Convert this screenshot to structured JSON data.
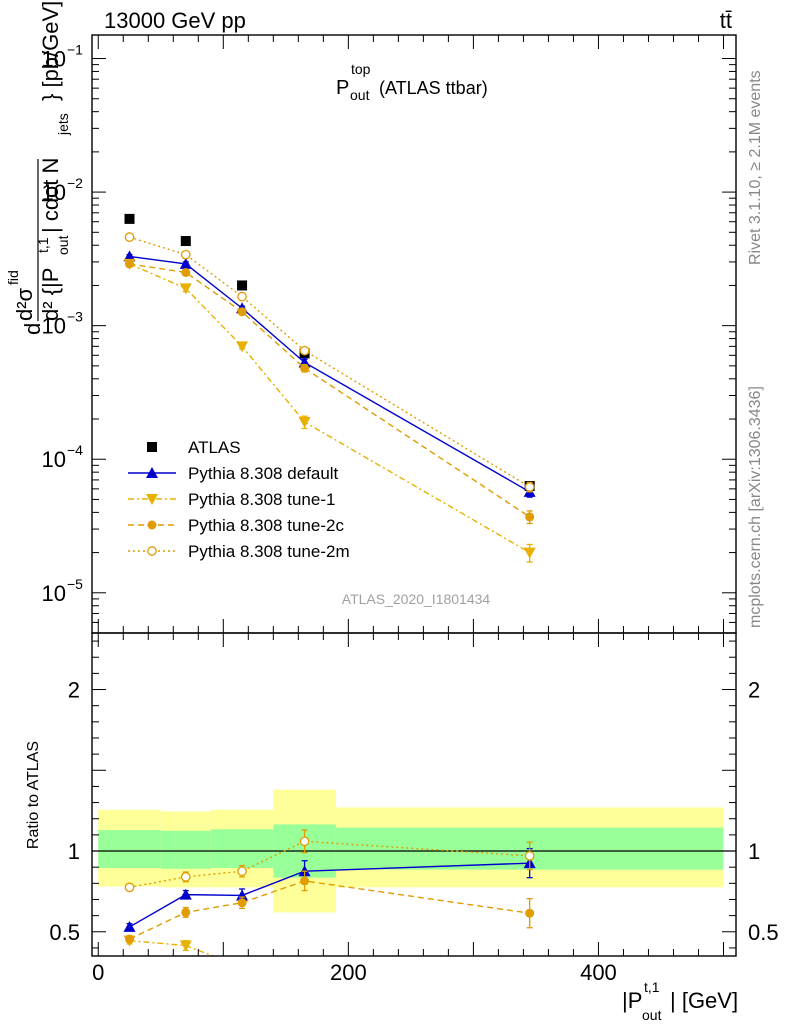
{
  "header": {
    "left_label": "13000 GeV pp",
    "right_label": "tt̄"
  },
  "side": {
    "right_top": "Rivet 3.1.10, ≥ 2.1M events",
    "right_bottom": "mcplots.cern.ch [arXiv:1306.3436]"
  },
  "analysis_id": "ATLAS_2020_I1801434",
  "chart_data": [
    {
      "type": "scatter",
      "panel": "main",
      "title": "P_out^top (ATLAS ttbar)",
      "title_parts": {
        "base": "P",
        "sup": "top",
        "sub": "out",
        "rest": "(ATLAS ttbar)"
      },
      "ylabel": "d²σ^fid / d²{|P_out^t,1| cdot N_jets} [pb/GeV]",
      "ylabel_parts": {
        "line1": "d²σ",
        "sup1": "fid",
        "line2": "d² {|P",
        "sup2": "t,1",
        "sub2": "out",
        "mid": "| cdot N",
        "sub3": "jets",
        "tail": "} [pb/GeV]"
      },
      "yscale": "log",
      "ylim": [
        5e-06,
        0.15
      ],
      "xlim": [
        -5,
        510
      ],
      "y_ticks": [
        {
          "v": 0.1,
          "base": "10",
          "exp": "−1"
        },
        {
          "v": 0.01,
          "base": "10",
          "exp": "−2"
        },
        {
          "v": 0.001,
          "base": "10",
          "exp": "−3"
        },
        {
          "v": 0.0001,
          "base": "10",
          "exp": "−4"
        },
        {
          "v": 1e-05,
          "base": "10",
          "exp": "−5"
        }
      ],
      "legend_position": "bottom-left",
      "series": [
        {
          "name": "ATLAS",
          "color": "#000000",
          "marker": "square",
          "dash": "none",
          "x": [
            25,
            70,
            115,
            165,
            345
          ],
          "y": [
            0.0063,
            0.0043,
            0.002,
            0.00062,
            6.3e-05
          ]
        },
        {
          "name": "Pythia 8.308 default",
          "color": "#0000cc",
          "marker": "triangle-up",
          "dash": "solid",
          "x": [
            25,
            70,
            115,
            165,
            345
          ],
          "y": [
            0.0033,
            0.0029,
            0.00135,
            0.00053,
            5.7e-05
          ],
          "err": [
            0.0001,
            0.0001,
            5e-05,
            3e-05,
            5e-06
          ]
        },
        {
          "name": "Pythia 8.308 tune-1",
          "color": "#e8b000",
          "marker": "triangle-down",
          "dash": "6,3,2,3",
          "x": [
            25,
            70,
            115,
            165,
            345
          ],
          "y": [
            0.0029,
            0.0019,
            0.0007,
            0.00019,
            2e-05
          ],
          "err": [
            0.0001,
            0.0001,
            3e-05,
            2e-05,
            3e-06
          ]
        },
        {
          "name": "Pythia 8.308 tune-2c",
          "color": "#e09c00",
          "marker": "circle",
          "dash": "6,4",
          "x": [
            25,
            70,
            115,
            165,
            345
          ],
          "y": [
            0.0029,
            0.0025,
            0.00127,
            0.00048,
            3.7e-05
          ],
          "err": [
            0.0001,
            0.0001,
            4e-05,
            3e-05,
            4e-06
          ]
        },
        {
          "name": "Pythia 8.308 tune-2m",
          "color": "#e09c00",
          "marker": "circle-open",
          "dash": "2,3",
          "x": [
            25,
            70,
            115,
            165,
            345
          ],
          "y": [
            0.0046,
            0.0034,
            0.00165,
            0.00065,
            6.2e-05
          ],
          "err": [
            0.0001,
            0.0001,
            5e-05,
            3e-05,
            5e-06
          ]
        }
      ]
    },
    {
      "type": "scatter",
      "panel": "ratio",
      "ylabel": "Ratio to ATLAS",
      "xlabel": "|P_out^t,1| [GeV]",
      "xlabel_parts": {
        "base": "|P",
        "sup": "t,1",
        "sub": "out",
        "tail": "| [GeV]"
      },
      "ylim": [
        0.35,
        2.35
      ],
      "xlim": [
        -5,
        510
      ],
      "y_ticks": [
        {
          "v": 0.5,
          "label": "0.5"
        },
        {
          "v": 1,
          "label": "1"
        },
        {
          "v": 2,
          "label": "2"
        }
      ],
      "x_ticks": [
        {
          "v": 0,
          "label": "0"
        },
        {
          "v": 200,
          "label": "200"
        },
        {
          "v": 400,
          "label": "400"
        }
      ],
      "bands": [
        {
          "x0": 0,
          "x1": 50,
          "inner": [
            0.895,
            1.13
          ],
          "outer": [
            0.78,
            1.255
          ]
        },
        {
          "x0": 50,
          "x1": 90,
          "inner": [
            0.89,
            1.125
          ],
          "outer": [
            0.775,
            1.245
          ]
        },
        {
          "x0": 90,
          "x1": 140,
          "inner": [
            0.895,
            1.135
          ],
          "outer": [
            0.775,
            1.255
          ]
        },
        {
          "x0": 140,
          "x1": 190,
          "inner": [
            0.835,
            1.165
          ],
          "outer": [
            0.62,
            1.38
          ]
        },
        {
          "x0": 190,
          "x1": 500,
          "inner": [
            0.885,
            1.145
          ],
          "outer": [
            0.775,
            1.27
          ]
        }
      ],
      "series": [
        {
          "name": "Pythia 8.308 default",
          "color": "#0000cc",
          "marker": "triangle-up",
          "dash": "solid",
          "x": [
            25,
            70,
            115,
            165,
            345
          ],
          "y": [
            0.53,
            0.73,
            0.725,
            0.875,
            0.925
          ],
          "err": [
            0.02,
            0.025,
            0.04,
            0.065,
            0.09
          ]
        },
        {
          "name": "Pythia 8.308 tune-1",
          "color": "#e8b000",
          "marker": "triangle-down",
          "dash": "6,3,2,3",
          "x": [
            25,
            70,
            115
          ],
          "y": [
            0.445,
            0.415,
            0.28
          ],
          "err": [
            0.02,
            0.03,
            0.02
          ]
        },
        {
          "name": "Pythia 8.308 tune-2c",
          "color": "#e09c00",
          "marker": "circle",
          "dash": "6,4",
          "x": [
            25,
            70,
            115,
            165,
            345
          ],
          "y": [
            0.455,
            0.62,
            0.68,
            0.815,
            0.615
          ],
          "err": [
            0.02,
            0.03,
            0.035,
            0.06,
            0.09
          ]
        },
        {
          "name": "Pythia 8.308 tune-2m",
          "color": "#e09c00",
          "marker": "circle-open",
          "dash": "2,3",
          "x": [
            25,
            70,
            115,
            165,
            345
          ],
          "y": [
            0.775,
            0.84,
            0.875,
            1.06,
            0.97
          ],
          "err": [
            0.02,
            0.03,
            0.035,
            0.07,
            0.085
          ]
        }
      ]
    }
  ]
}
